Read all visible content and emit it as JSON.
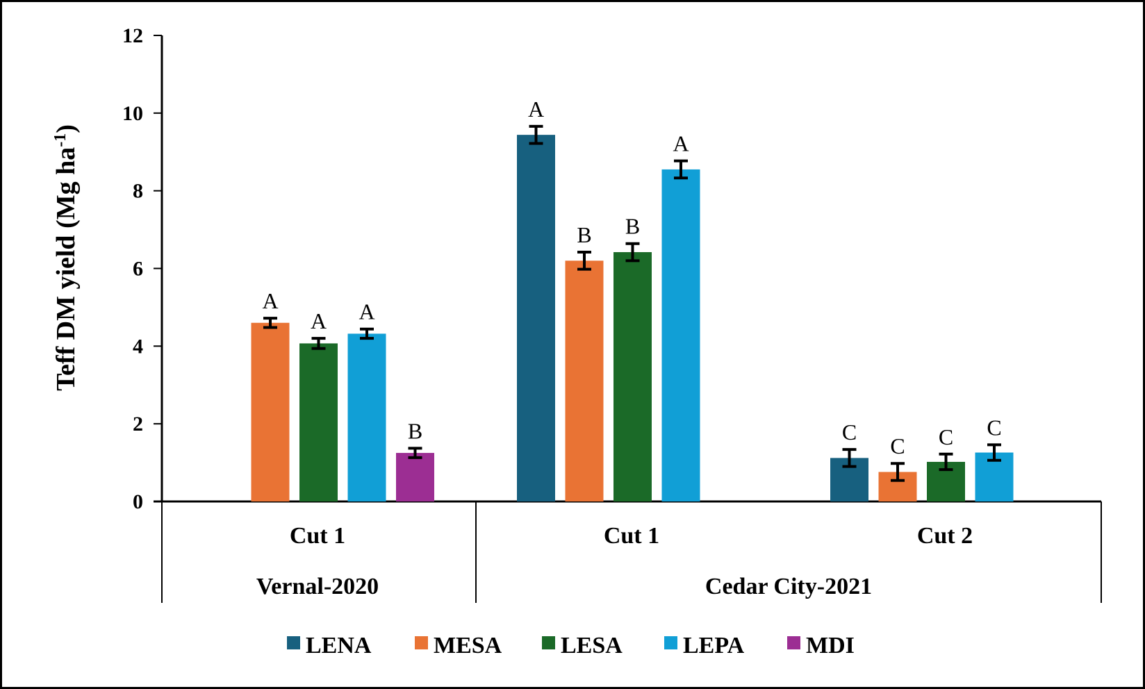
{
  "chart_data": {
    "type": "bar",
    "title": "",
    "xlabel": "",
    "ylabel": "Teff DM yield (Mg ha",
    "ylabel_superscript": "-1",
    "ylabel_suffix": ")",
    "ylim": [
      0,
      12
    ],
    "yticks": [
      0,
      2,
      4,
      6,
      8,
      10,
      12
    ],
    "grid": false,
    "legend_position": "bottom",
    "groups": [
      {
        "location": "Vernal-2020",
        "cuts": [
          "Cut 1"
        ]
      },
      {
        "location": "Cedar City-2021",
        "cuts": [
          "Cut 1",
          "Cut 2"
        ]
      }
    ],
    "categories": [
      "Vernal-2020 Cut 1",
      "Cedar City-2021 Cut 1",
      "Cedar City-2021 Cut 2"
    ],
    "series": [
      {
        "name": "LENA",
        "color": "#17607F",
        "values": [
          null,
          9.44,
          1.12
        ],
        "errors": [
          null,
          0.22,
          0.22
        ],
        "letters": [
          null,
          "A",
          "C"
        ]
      },
      {
        "name": "MESA",
        "color": "#E97334",
        "values": [
          4.6,
          6.2,
          0.76
        ],
        "errors": [
          0.12,
          0.22,
          0.22
        ],
        "letters": [
          "A",
          "B",
          "C"
        ]
      },
      {
        "name": "LESA",
        "color": "#1B6A28",
        "values": [
          4.07,
          6.42,
          1.02
        ],
        "errors": [
          0.13,
          0.22,
          0.2
        ],
        "letters": [
          "A",
          "B",
          "C"
        ]
      },
      {
        "name": "LEPA",
        "color": "#119FD6",
        "values": [
          4.32,
          8.55,
          1.26
        ],
        "errors": [
          0.12,
          0.22,
          0.2
        ],
        "letters": [
          "A",
          "A",
          "C"
        ]
      },
      {
        "name": "MDI",
        "color": "#9C2E93",
        "values": [
          1.25,
          null,
          null
        ],
        "errors": [
          0.12,
          null,
          null
        ],
        "letters": [
          "B",
          null,
          null
        ]
      }
    ]
  }
}
